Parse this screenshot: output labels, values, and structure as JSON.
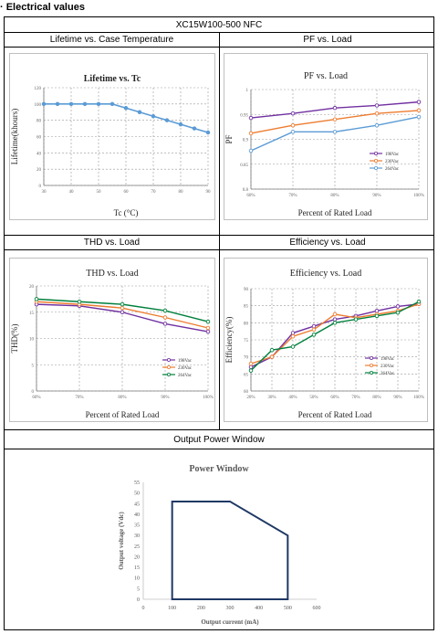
{
  "page": {
    "section_title": "· Electrical values",
    "model": "XC15W100-500 NFC",
    "headers": [
      "Lifetime vs. Case Temperature",
      "PF vs. Load",
      "THD vs. Load",
      "Efficiency vs. Load",
      "Output Power Window"
    ]
  },
  "chart_data": [
    {
      "type": "line",
      "title": "Lifetime vs. Tc",
      "xlabel": "Tc (°C)",
      "ylabel": "Lifetime(khours)",
      "xlim": [
        30,
        90
      ],
      "ylim": [
        0,
        120
      ],
      "xticks": [
        30,
        40,
        50,
        60,
        70,
        80,
        90
      ],
      "yticks": [
        0,
        20,
        40,
        60,
        80,
        100,
        120
      ],
      "series": [
        {
          "x": [
            30,
            35,
            40,
            45,
            50,
            55,
            60,
            65,
            70,
            75,
            80,
            85,
            90
          ],
          "y": [
            100,
            100,
            100,
            100,
            100,
            100,
            95,
            90,
            85,
            80,
            75,
            70,
            65
          ],
          "color": "#5b9bd5"
        }
      ]
    },
    {
      "type": "line",
      "title": "PF vs. Load",
      "xlabel": "Percent of Rated Load",
      "ylabel": "PF",
      "categories": [
        "60%",
        "70%",
        "80%",
        "90%",
        "100%"
      ],
      "ylim": [
        0.8,
        1
      ],
      "yticks": [
        "0.8",
        "0.85",
        "0.9",
        "0.95",
        "1"
      ],
      "legend": "right",
      "series": [
        {
          "name": "198Vac",
          "values": [
            0.943,
            0.952,
            0.963,
            0.968,
            0.975
          ],
          "color": "#7030a0"
        },
        {
          "name": "230Vac",
          "values": [
            0.912,
            0.928,
            0.94,
            0.952,
            0.958
          ],
          "color": "#ed7d31"
        },
        {
          "name": "264Vac",
          "values": [
            0.877,
            0.915,
            0.915,
            0.928,
            0.945
          ],
          "color": "#5b9bd5"
        }
      ]
    },
    {
      "type": "line",
      "title": "THD vs. Load",
      "xlabel": "Percent of Rated Load",
      "ylabel": "THD(%)",
      "categories": [
        "60%",
        "70%",
        "80%",
        "90%",
        "100%"
      ],
      "ylim": [
        0,
        20
      ],
      "yticks": [
        "0",
        "5",
        "10",
        "15",
        "20"
      ],
      "legend": "bottom-right",
      "series": [
        {
          "name": "198Vac",
          "values": [
            16.5,
            16.2,
            15,
            12.8,
            11.3
          ],
          "color": "#7030a0"
        },
        {
          "name": "230Vac",
          "values": [
            17,
            16.5,
            15.8,
            14,
            12
          ],
          "color": "#ed7d31"
        },
        {
          "name": "264Vac",
          "values": [
            17.5,
            17,
            16.5,
            15.3,
            13.2
          ],
          "color": "#00803c"
        }
      ]
    },
    {
      "type": "line",
      "title": "Efficiency vs. Load",
      "xlabel": "Percent of Rated Load",
      "ylabel": "Efficiency(%)",
      "categories": [
        "20%",
        "30%",
        "40%",
        "50%",
        "60%",
        "70%",
        "80%",
        "90%",
        "100%"
      ],
      "ylim": [
        60,
        90
      ],
      "yticks": [
        "60",
        "65",
        "70",
        "75",
        "80",
        "85",
        "90"
      ],
      "legend": "bottom-right",
      "series": [
        {
          "name": "198Vac",
          "values": [
            67,
            70,
            77,
            79,
            81,
            82,
            83.5,
            84.8,
            85.5
          ],
          "color": "#7030a0"
        },
        {
          "name": "230Vac",
          "values": [
            68,
            70,
            76,
            78,
            82.5,
            81.5,
            82.5,
            83.5,
            85.5
          ],
          "color": "#ed7d31"
        },
        {
          "name": "264Vac",
          "values": [
            66,
            72,
            73,
            76.5,
            80,
            81,
            82,
            83,
            86.2
          ],
          "color": "#00803c"
        }
      ]
    },
    {
      "type": "area",
      "title": "Power Window",
      "xlabel": "Output current (mA)",
      "ylabel": "Output voltage (Vdc)",
      "xlim": [
        0,
        600
      ],
      "ylim": [
        0,
        55
      ],
      "xticks": [
        0,
        100,
        200,
        300,
        400,
        500,
        600
      ],
      "yticks": [
        0,
        5,
        10,
        15,
        20,
        25,
        30,
        35,
        40,
        45,
        50,
        55
      ],
      "polygon": [
        [
          100,
          0
        ],
        [
          100,
          46
        ],
        [
          300,
          46
        ],
        [
          500,
          30
        ],
        [
          500,
          0
        ]
      ],
      "color": "#1f3864"
    }
  ]
}
